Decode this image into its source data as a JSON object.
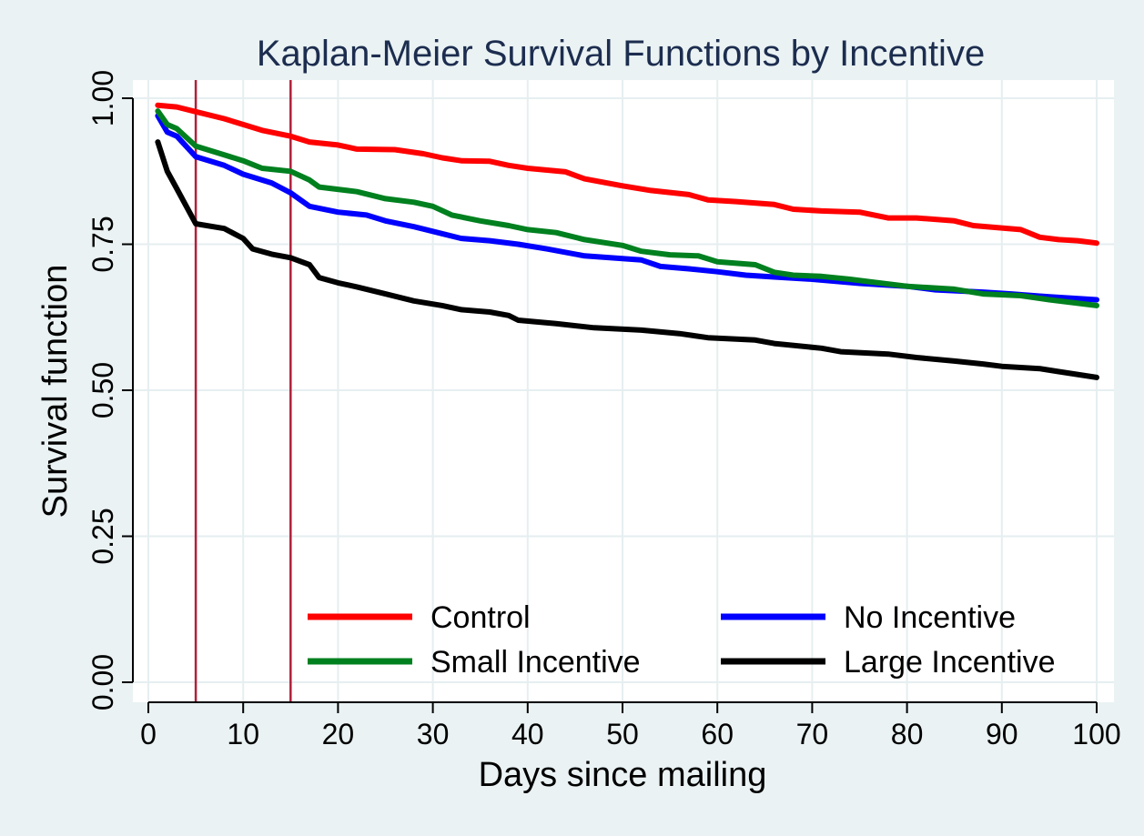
{
  "chart_data": {
    "type": "line",
    "title": "Kaplan-Meier Survival Functions by Incentive",
    "xlabel": "Days since mailing",
    "ylabel": "Survival function",
    "xlim": [
      0,
      100
    ],
    "ylim": [
      0,
      1
    ],
    "xticks": [
      0,
      10,
      20,
      30,
      40,
      50,
      60,
      70,
      80,
      90,
      100
    ],
    "xtick_labels": [
      "0",
      "10",
      "20",
      "30",
      "40",
      "50",
      "60",
      "70",
      "80",
      "90",
      "100"
    ],
    "yticks": [
      0,
      0.25,
      0.5,
      0.75,
      1
    ],
    "ytick_labels": [
      "0.00",
      "0.25",
      "0.50",
      "0.75",
      "1.00"
    ],
    "grid": true,
    "legend_position": "bottom-right inside plot",
    "reference_lines_x": [
      5,
      15
    ],
    "reference_line_color": "#b0203a",
    "series": [
      {
        "name": "Control",
        "color": "#ff0000",
        "points": [
          [
            1,
            0.988
          ],
          [
            3,
            0.985
          ],
          [
            5,
            0.977
          ],
          [
            8,
            0.965
          ],
          [
            10,
            0.955
          ],
          [
            12,
            0.945
          ],
          [
            15,
            0.935
          ],
          [
            17,
            0.925
          ],
          [
            20,
            0.92
          ],
          [
            22,
            0.913
          ],
          [
            26,
            0.912
          ],
          [
            29,
            0.905
          ],
          [
            31,
            0.898
          ],
          [
            33,
            0.893
          ],
          [
            36,
            0.892
          ],
          [
            38,
            0.885
          ],
          [
            40,
            0.88
          ],
          [
            44,
            0.874
          ],
          [
            46,
            0.862
          ],
          [
            50,
            0.85
          ],
          [
            53,
            0.842
          ],
          [
            57,
            0.835
          ],
          [
            59,
            0.826
          ],
          [
            62,
            0.823
          ],
          [
            66,
            0.818
          ],
          [
            68,
            0.81
          ],
          [
            71,
            0.807
          ],
          [
            75,
            0.805
          ],
          [
            78,
            0.795
          ],
          [
            81,
            0.795
          ],
          [
            85,
            0.79
          ],
          [
            87,
            0.782
          ],
          [
            92,
            0.775
          ],
          [
            94,
            0.762
          ],
          [
            96,
            0.758
          ],
          [
            98,
            0.756
          ],
          [
            100,
            0.752
          ]
        ]
      },
      {
        "name": "No Incentive",
        "color": "#0000ff",
        "points": [
          [
            1,
            0.97
          ],
          [
            2,
            0.942
          ],
          [
            3,
            0.935
          ],
          [
            5,
            0.9
          ],
          [
            8,
            0.885
          ],
          [
            10,
            0.87
          ],
          [
            13,
            0.855
          ],
          [
            15,
            0.838
          ],
          [
            17,
            0.815
          ],
          [
            20,
            0.805
          ],
          [
            23,
            0.8
          ],
          [
            25,
            0.79
          ],
          [
            28,
            0.78
          ],
          [
            31,
            0.768
          ],
          [
            33,
            0.76
          ],
          [
            36,
            0.756
          ],
          [
            39,
            0.75
          ],
          [
            42,
            0.742
          ],
          [
            46,
            0.73
          ],
          [
            52,
            0.723
          ],
          [
            54,
            0.712
          ],
          [
            57,
            0.708
          ],
          [
            60,
            0.703
          ],
          [
            63,
            0.697
          ],
          [
            66,
            0.694
          ],
          [
            70,
            0.69
          ],
          [
            75,
            0.683
          ],
          [
            80,
            0.678
          ],
          [
            83,
            0.672
          ],
          [
            88,
            0.668
          ],
          [
            91,
            0.665
          ],
          [
            95,
            0.66
          ],
          [
            100,
            0.655
          ]
        ]
      },
      {
        "name": "Small Incentive",
        "color": "#00801f",
        "points": [
          [
            1,
            0.978
          ],
          [
            2,
            0.955
          ],
          [
            3,
            0.948
          ],
          [
            5,
            0.918
          ],
          [
            8,
            0.903
          ],
          [
            10,
            0.893
          ],
          [
            12,
            0.88
          ],
          [
            15,
            0.875
          ],
          [
            17,
            0.86
          ],
          [
            18,
            0.848
          ],
          [
            22,
            0.84
          ],
          [
            25,
            0.828
          ],
          [
            28,
            0.822
          ],
          [
            30,
            0.815
          ],
          [
            32,
            0.8
          ],
          [
            35,
            0.79
          ],
          [
            38,
            0.782
          ],
          [
            40,
            0.775
          ],
          [
            43,
            0.77
          ],
          [
            46,
            0.758
          ],
          [
            50,
            0.748
          ],
          [
            52,
            0.738
          ],
          [
            55,
            0.732
          ],
          [
            58,
            0.73
          ],
          [
            60,
            0.72
          ],
          [
            64,
            0.715
          ],
          [
            66,
            0.702
          ],
          [
            68,
            0.697
          ],
          [
            71,
            0.695
          ],
          [
            74,
            0.69
          ],
          [
            76,
            0.686
          ],
          [
            80,
            0.678
          ],
          [
            85,
            0.673
          ],
          [
            88,
            0.665
          ],
          [
            92,
            0.662
          ],
          [
            95,
            0.655
          ],
          [
            100,
            0.645
          ]
        ]
      },
      {
        "name": "Large Incentive",
        "color": "#000000",
        "points": [
          [
            1,
            0.925
          ],
          [
            2,
            0.875
          ],
          [
            3,
            0.845
          ],
          [
            5,
            0.785
          ],
          [
            8,
            0.777
          ],
          [
            10,
            0.76
          ],
          [
            11,
            0.742
          ],
          [
            13,
            0.733
          ],
          [
            15,
            0.727
          ],
          [
            17,
            0.715
          ],
          [
            18,
            0.693
          ],
          [
            20,
            0.684
          ],
          [
            22,
            0.677
          ],
          [
            25,
            0.665
          ],
          [
            28,
            0.653
          ],
          [
            31,
            0.645
          ],
          [
            33,
            0.638
          ],
          [
            36,
            0.634
          ],
          [
            38,
            0.628
          ],
          [
            39,
            0.62
          ],
          [
            43,
            0.614
          ],
          [
            47,
            0.607
          ],
          [
            52,
            0.603
          ],
          [
            56,
            0.597
          ],
          [
            59,
            0.59
          ],
          [
            64,
            0.586
          ],
          [
            66,
            0.58
          ],
          [
            71,
            0.572
          ],
          [
            73,
            0.566
          ],
          [
            78,
            0.562
          ],
          [
            81,
            0.556
          ],
          [
            85,
            0.55
          ],
          [
            88,
            0.545
          ],
          [
            90,
            0.541
          ],
          [
            94,
            0.537
          ],
          [
            96,
            0.532
          ],
          [
            100,
            0.522
          ]
        ]
      }
    ]
  }
}
